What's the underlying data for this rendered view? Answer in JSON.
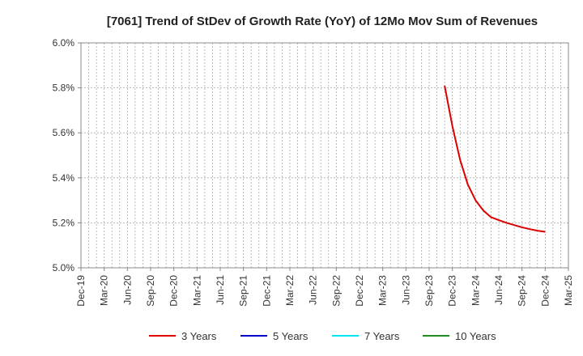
{
  "chart_data": {
    "type": "line",
    "title": "[7061]  Trend of StDev of Growth Rate (YoY) of 12Mo Mov Sum of Revenues",
    "xlabel": "",
    "ylabel": "",
    "x_tick_labels": [
      "Dec-19",
      "Mar-20",
      "Jun-20",
      "Sep-20",
      "Dec-20",
      "Mar-21",
      "Jun-21",
      "Sep-21",
      "Dec-21",
      "Mar-22",
      "Jun-22",
      "Sep-22",
      "Dec-22",
      "Mar-23",
      "Jun-23",
      "Sep-23",
      "Dec-23",
      "Mar-24",
      "Jun-24",
      "Sep-24",
      "Dec-24",
      "Mar-25"
    ],
    "y_tick_labels": [
      "6.0%",
      "5.8%",
      "5.6%",
      "5.4%",
      "5.2%",
      "5.0%"
    ],
    "ylim": [
      5.0,
      6.0
    ],
    "y_ticks": [
      6.0,
      5.8,
      5.6,
      5.4,
      5.2,
      5.0
    ],
    "grid": "dotted",
    "legend_position": "bottom",
    "series": [
      {
        "name": "3 Years",
        "color": "#dd0000",
        "x": [
          "Nov-23",
          "Dec-23",
          "Jan-24",
          "Feb-24",
          "Mar-24",
          "Apr-24",
          "May-24",
          "Jun-24",
          "Jul-24",
          "Aug-24",
          "Sep-24",
          "Oct-24",
          "Nov-24",
          "Dec-24"
        ],
        "values": [
          5.81,
          5.63,
          5.48,
          5.37,
          5.3,
          5.255,
          5.225,
          5.212,
          5.2,
          5.19,
          5.18,
          5.172,
          5.165,
          5.16
        ]
      },
      {
        "name": "5 Years",
        "color": "#0000cc",
        "x": [],
        "values": []
      },
      {
        "name": "7 Years",
        "color": "#00e5ee",
        "x": [],
        "values": []
      },
      {
        "name": "10 Years",
        "color": "#228b22",
        "x": [],
        "values": []
      }
    ]
  }
}
